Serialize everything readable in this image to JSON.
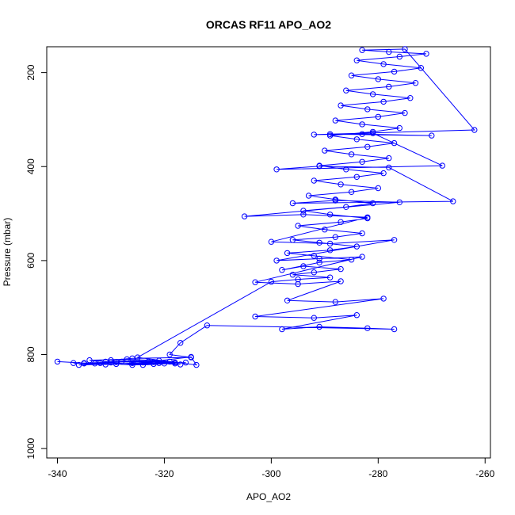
{
  "chart_data": {
    "type": "line",
    "title": "ORCAS RF11 APO_AO2",
    "xlabel": "APO_AO2",
    "ylabel": "Pressure (mbar)",
    "xlim": [
      -342,
      -259
    ],
    "ylim": [
      1020,
      145
    ],
    "y_inverted": true,
    "xticks": [
      -340,
      -320,
      -300,
      -280,
      -260
    ],
    "yticks": [
      200,
      400,
      600,
      800,
      1000
    ],
    "grid": false,
    "legend": "none",
    "color": "#0000ff",
    "marker": "open-circle",
    "series": [
      {
        "points": [
          [
            -340,
            815
          ],
          [
            -335,
            818
          ],
          [
            -329,
            816
          ],
          [
            -323,
            815
          ],
          [
            -318,
            817
          ],
          [
            -322,
            820
          ],
          [
            -333,
            819
          ],
          [
            -337,
            818
          ],
          [
            -331,
            821
          ],
          [
            -326,
            818
          ],
          [
            -320,
            819
          ],
          [
            -316,
            817
          ],
          [
            -324,
            822
          ],
          [
            -330,
            817
          ],
          [
            -335,
            819
          ],
          [
            -328,
            815
          ],
          [
            -322,
            816
          ],
          [
            -318,
            819
          ],
          [
            -326,
            822
          ],
          [
            -332,
            818
          ],
          [
            -336,
            822
          ],
          [
            -329,
            820
          ],
          [
            -321,
            818
          ],
          [
            -317,
            821
          ],
          [
            -325,
            816
          ],
          [
            -331,
            815
          ],
          [
            -334,
            812
          ],
          [
            -327,
            810
          ],
          [
            -321,
            813
          ],
          [
            -315,
            805
          ],
          [
            -314,
            822
          ],
          [
            -325,
            806
          ],
          [
            -300,
            645
          ],
          [
            -295,
            640
          ],
          [
            -289,
            636
          ],
          [
            -296,
            630
          ],
          [
            -292,
            625
          ],
          [
            -287,
            618
          ],
          [
            -294,
            612
          ],
          [
            -298,
            620
          ],
          [
            -291,
            604
          ],
          [
            -285,
            598
          ],
          [
            -292,
            590
          ],
          [
            -297,
            584
          ],
          [
            -289,
            578
          ],
          [
            -284,
            570
          ],
          [
            -291,
            562
          ],
          [
            -296,
            556
          ],
          [
            -288,
            550
          ],
          [
            -283,
            542
          ],
          [
            -290,
            534
          ],
          [
            -295,
            526
          ],
          [
            -287,
            518
          ],
          [
            -282,
            510
          ],
          [
            -289,
            502
          ],
          [
            -294,
            494
          ],
          [
            -286,
            486
          ],
          [
            -281,
            478
          ],
          [
            -288,
            470
          ],
          [
            -293,
            462
          ],
          [
            -285,
            454
          ],
          [
            -280,
            446
          ],
          [
            -287,
            438
          ],
          [
            -292,
            430
          ],
          [
            -284,
            422
          ],
          [
            -279,
            414
          ],
          [
            -286,
            406
          ],
          [
            -291,
            398
          ],
          [
            -283,
            390
          ],
          [
            -278,
            382
          ],
          [
            -285,
            374
          ],
          [
            -290,
            366
          ],
          [
            -282,
            358
          ],
          [
            -277,
            350
          ],
          [
            -284,
            342
          ],
          [
            -289,
            334
          ],
          [
            -281,
            326
          ],
          [
            -276,
            318
          ],
          [
            -283,
            310
          ],
          [
            -288,
            302
          ],
          [
            -280,
            294
          ],
          [
            -275,
            286
          ],
          [
            -282,
            278
          ],
          [
            -287,
            270
          ],
          [
            -279,
            262
          ],
          [
            -274,
            254
          ],
          [
            -281,
            246
          ],
          [
            -286,
            238
          ],
          [
            -278,
            230
          ],
          [
            -273,
            222
          ],
          [
            -280,
            214
          ],
          [
            -285,
            206
          ],
          [
            -277,
            198
          ],
          [
            -272,
            190
          ],
          [
            -279,
            182
          ],
          [
            -284,
            174
          ],
          [
            -276,
            166
          ],
          [
            -271,
            160
          ],
          [
            -278,
            156
          ],
          [
            -283,
            152
          ],
          [
            -275,
            150
          ],
          [
            -262,
            322
          ],
          [
            -292,
            332
          ],
          [
            -283,
            331
          ],
          [
            -270,
            334
          ],
          [
            -289,
            331
          ],
          [
            -281,
            329
          ],
          [
            -268,
            398
          ],
          [
            -299,
            406
          ],
          [
            -291,
            399
          ],
          [
            -278,
            402
          ],
          [
            -266,
            474
          ],
          [
            -296,
            478
          ],
          [
            -288,
            472
          ],
          [
            -276,
            476
          ],
          [
            -305,
            506
          ],
          [
            -294,
            502
          ],
          [
            -282,
            508
          ],
          [
            -300,
            560
          ],
          [
            -289,
            564
          ],
          [
            -277,
            556
          ],
          [
            -299,
            600
          ],
          [
            -291,
            596
          ],
          [
            -283,
            592
          ],
          [
            -303,
            646
          ],
          [
            -295,
            650
          ],
          [
            -287,
            644
          ],
          [
            -297,
            685
          ],
          [
            -288,
            688
          ],
          [
            -279,
            681
          ],
          [
            -303,
            719
          ],
          [
            -292,
            722
          ],
          [
            -284,
            716
          ],
          [
            -298,
            746
          ],
          [
            -291,
            741
          ],
          [
            -282,
            744
          ],
          [
            -277,
            746
          ],
          [
            -312,
            738
          ],
          [
            -317,
            775
          ],
          [
            -319,
            800
          ],
          [
            -315,
            806
          ],
          [
            -326,
            808
          ],
          [
            -330,
            812
          ],
          [
            -319,
            815
          ]
        ]
      }
    ]
  }
}
